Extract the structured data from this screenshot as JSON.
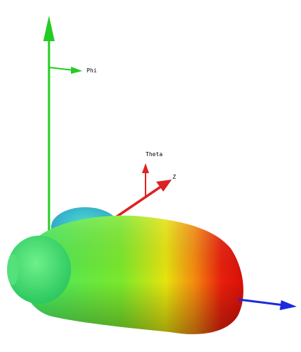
{
  "labels": {
    "phi": "Phi",
    "theta": "Theta",
    "z": "Z"
  }
}
